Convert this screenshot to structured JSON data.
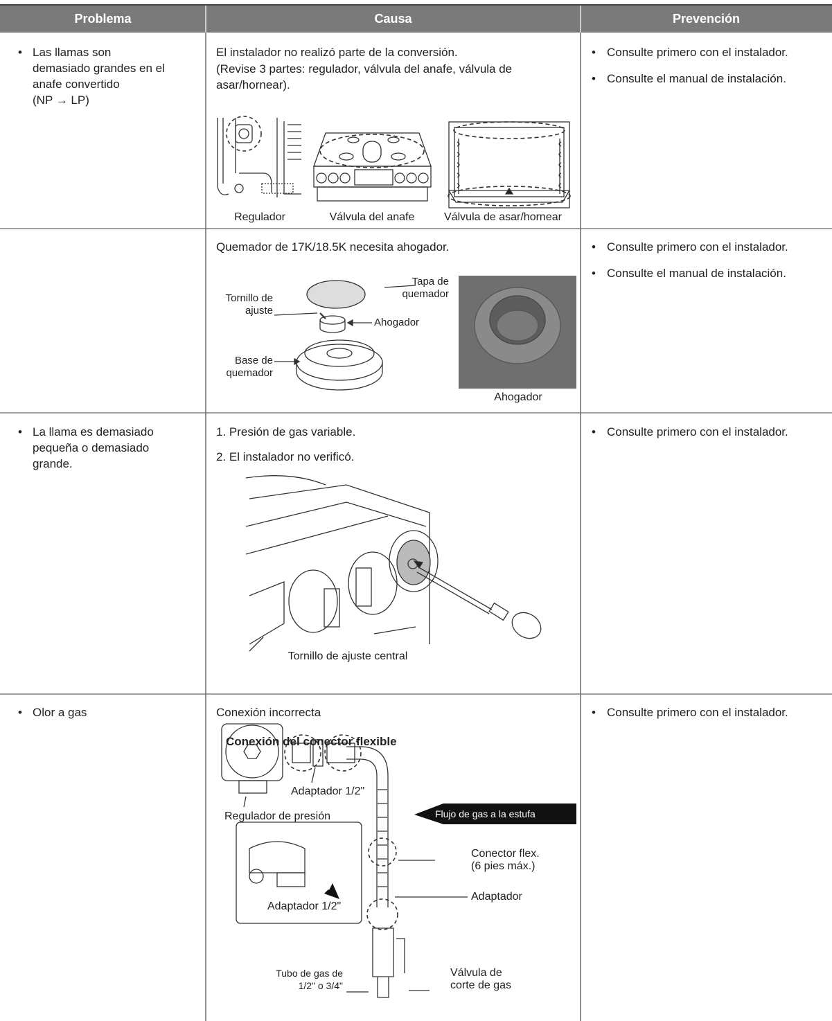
{
  "header": {
    "columns": [
      "Problema",
      "Causa",
      "Prevención"
    ]
  },
  "rows": [
    {
      "problem": [
        "Las llamas son",
        "demasiado grandes en el",
        "anafe convertido",
        "(NP → LP)"
      ],
      "cause": [
        "El instalador no realizó parte de la conversión.",
        "(Revise 3 partes: regulador, válvula del anafe, válvula de asar/hornear)."
      ],
      "figure_labels": [
        "Regulador",
        "Válvula del anafe",
        "Válvula de asar/hornear"
      ],
      "prevention": [
        "Consulte primero con el instalador.",
        "Consulte el manual de instalación."
      ]
    },
    {
      "cause": [
        "Quemador de 17K/18.5K necesita ahogador."
      ],
      "figure_labels": [
        "Tapa de\nquemador",
        "Tornillo de\najuste",
        "Ahogador",
        "Base de\nquemador",
        "Ahogador"
      ],
      "prevention": [
        "Consulte primero con el instalador.",
        "Consulte el manual de instalación."
      ]
    },
    {
      "problem": [
        "La llama es demasiado",
        "pequeña o demasiado",
        "grande."
      ],
      "cause": [
        "1. Presión de gas variable.",
        "2. El instalador no verificó."
      ],
      "figure_labels": [
        "Tornillo de ajuste central"
      ],
      "prevention": [
        "Consulte primero con el instalador."
      ]
    },
    {
      "problem": [
        "Olor a gas"
      ],
      "cause": [
        "Conexión incorrecta"
      ],
      "figure_title": "Conexión del conector flexible",
      "figure_labels": [
        "Adaptador 1/2\"",
        "Regulador de presión",
        "Flujo de gas a la estufa",
        "Conector flex.\n(6 pies máx.)",
        "Adaptador",
        "Adaptador 1/2\"",
        "Tubo de gas de\n1/2\" o 3/4\"",
        "Válvula de\ncorte de gas"
      ],
      "prevention": [
        "Consulte primero con el instalador."
      ]
    }
  ]
}
